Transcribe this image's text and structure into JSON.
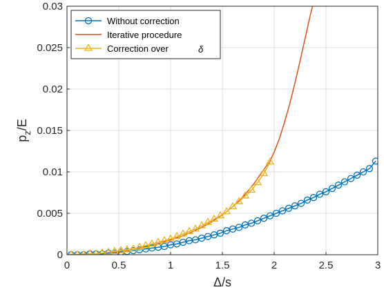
{
  "chart_data": {
    "type": "line",
    "xlabel": "Δ/s",
    "ylabel_main": "p",
    "ylabel_sub": "z",
    "ylabel_tail": "/E",
    "xlim": [
      0,
      3
    ],
    "ylim": [
      0,
      0.03
    ],
    "xticks": [
      "0",
      "0.5",
      "1",
      "1.5",
      "2",
      "2.5",
      "3"
    ],
    "yticks": [
      "0",
      "0.005",
      "0.01",
      "0.015",
      "0.02",
      "0.025",
      "0.03"
    ],
    "grid": true,
    "legend_position": "top-left",
    "series": [
      {
        "name": "Without correction",
        "marker": "circle",
        "color": "#0072BD",
        "x": [
          0.04,
          0.1,
          0.16,
          0.22,
          0.28,
          0.34,
          0.4,
          0.46,
          0.52,
          0.58,
          0.64,
          0.7,
          0.76,
          0.82,
          0.88,
          0.94,
          1.0,
          1.06,
          1.12,
          1.18,
          1.24,
          1.3,
          1.36,
          1.42,
          1.48,
          1.54,
          1.6,
          1.66,
          1.72,
          1.78,
          1.84,
          1.9,
          1.96,
          2.02,
          2.08,
          2.14,
          2.2,
          2.26,
          2.32,
          2.38,
          2.44,
          2.5,
          2.56,
          2.62,
          2.68,
          2.74,
          2.8,
          2.86,
          2.92,
          2.98
        ],
        "y": [
          0.0,
          0.0,
          0.0,
          0.0001,
          0.0001,
          0.0001,
          0.0002,
          0.0002,
          0.0003,
          0.0004,
          0.0005,
          0.0006,
          0.0007,
          0.0008,
          0.0009,
          0.001,
          0.0012,
          0.0013,
          0.0015,
          0.0017,
          0.0018,
          0.002,
          0.0022,
          0.0024,
          0.0026,
          0.0029,
          0.0031,
          0.0033,
          0.0036,
          0.0038,
          0.0041,
          0.0044,
          0.0047,
          0.005,
          0.0053,
          0.0056,
          0.0059,
          0.0062,
          0.0066,
          0.0069,
          0.0073,
          0.0076,
          0.008,
          0.0084,
          0.0088,
          0.0092,
          0.0096,
          0.01,
          0.0104,
          0.0113
        ]
      },
      {
        "name": "Iterative procedure",
        "marker": "none",
        "color": "#D95319",
        "x": [
          0.0,
          0.1,
          0.2,
          0.3,
          0.4,
          0.5,
          0.6,
          0.7,
          0.8,
          0.9,
          1.0,
          1.1,
          1.2,
          1.3,
          1.4,
          1.5,
          1.6,
          1.7,
          1.8,
          1.9,
          1.96,
          2.0,
          2.05,
          2.1,
          2.15,
          2.2,
          2.25,
          2.3,
          2.35,
          2.38
        ],
        "y": [
          0.0,
          0.0,
          0.0001,
          0.0001,
          0.0002,
          0.0004,
          0.0006,
          0.0008,
          0.0011,
          0.0014,
          0.0018,
          0.0022,
          0.0027,
          0.0033,
          0.004,
          0.0048,
          0.0058,
          0.007,
          0.0085,
          0.0103,
          0.0113,
          0.0124,
          0.014,
          0.016,
          0.0182,
          0.0207,
          0.0234,
          0.0262,
          0.029,
          0.0305
        ]
      },
      {
        "name": "Correction over δ",
        "legend_main": "Correction over",
        "legend_symbol": "δ",
        "marker": "triangle",
        "color": "#EDB120",
        "x": [
          0.04,
          0.1,
          0.16,
          0.22,
          0.28,
          0.34,
          0.4,
          0.46,
          0.52,
          0.58,
          0.64,
          0.7,
          0.76,
          0.82,
          0.88,
          0.94,
          1.0,
          1.06,
          1.12,
          1.18,
          1.24,
          1.3,
          1.36,
          1.42,
          1.48,
          1.54,
          1.6,
          1.66,
          1.72,
          1.78,
          1.84,
          1.9,
          1.96
        ],
        "y": [
          0.0,
          0.0,
          0.0,
          0.0001,
          0.0001,
          0.0002,
          0.0003,
          0.0004,
          0.0005,
          0.0006,
          0.0007,
          0.0009,
          0.0011,
          0.0013,
          0.0015,
          0.0017,
          0.0019,
          0.0022,
          0.0025,
          0.0028,
          0.0031,
          0.0035,
          0.0039,
          0.0043,
          0.0047,
          0.0052,
          0.0058,
          0.0064,
          0.0071,
          0.0078,
          0.0087,
          0.0098,
          0.0112
        ]
      }
    ]
  }
}
